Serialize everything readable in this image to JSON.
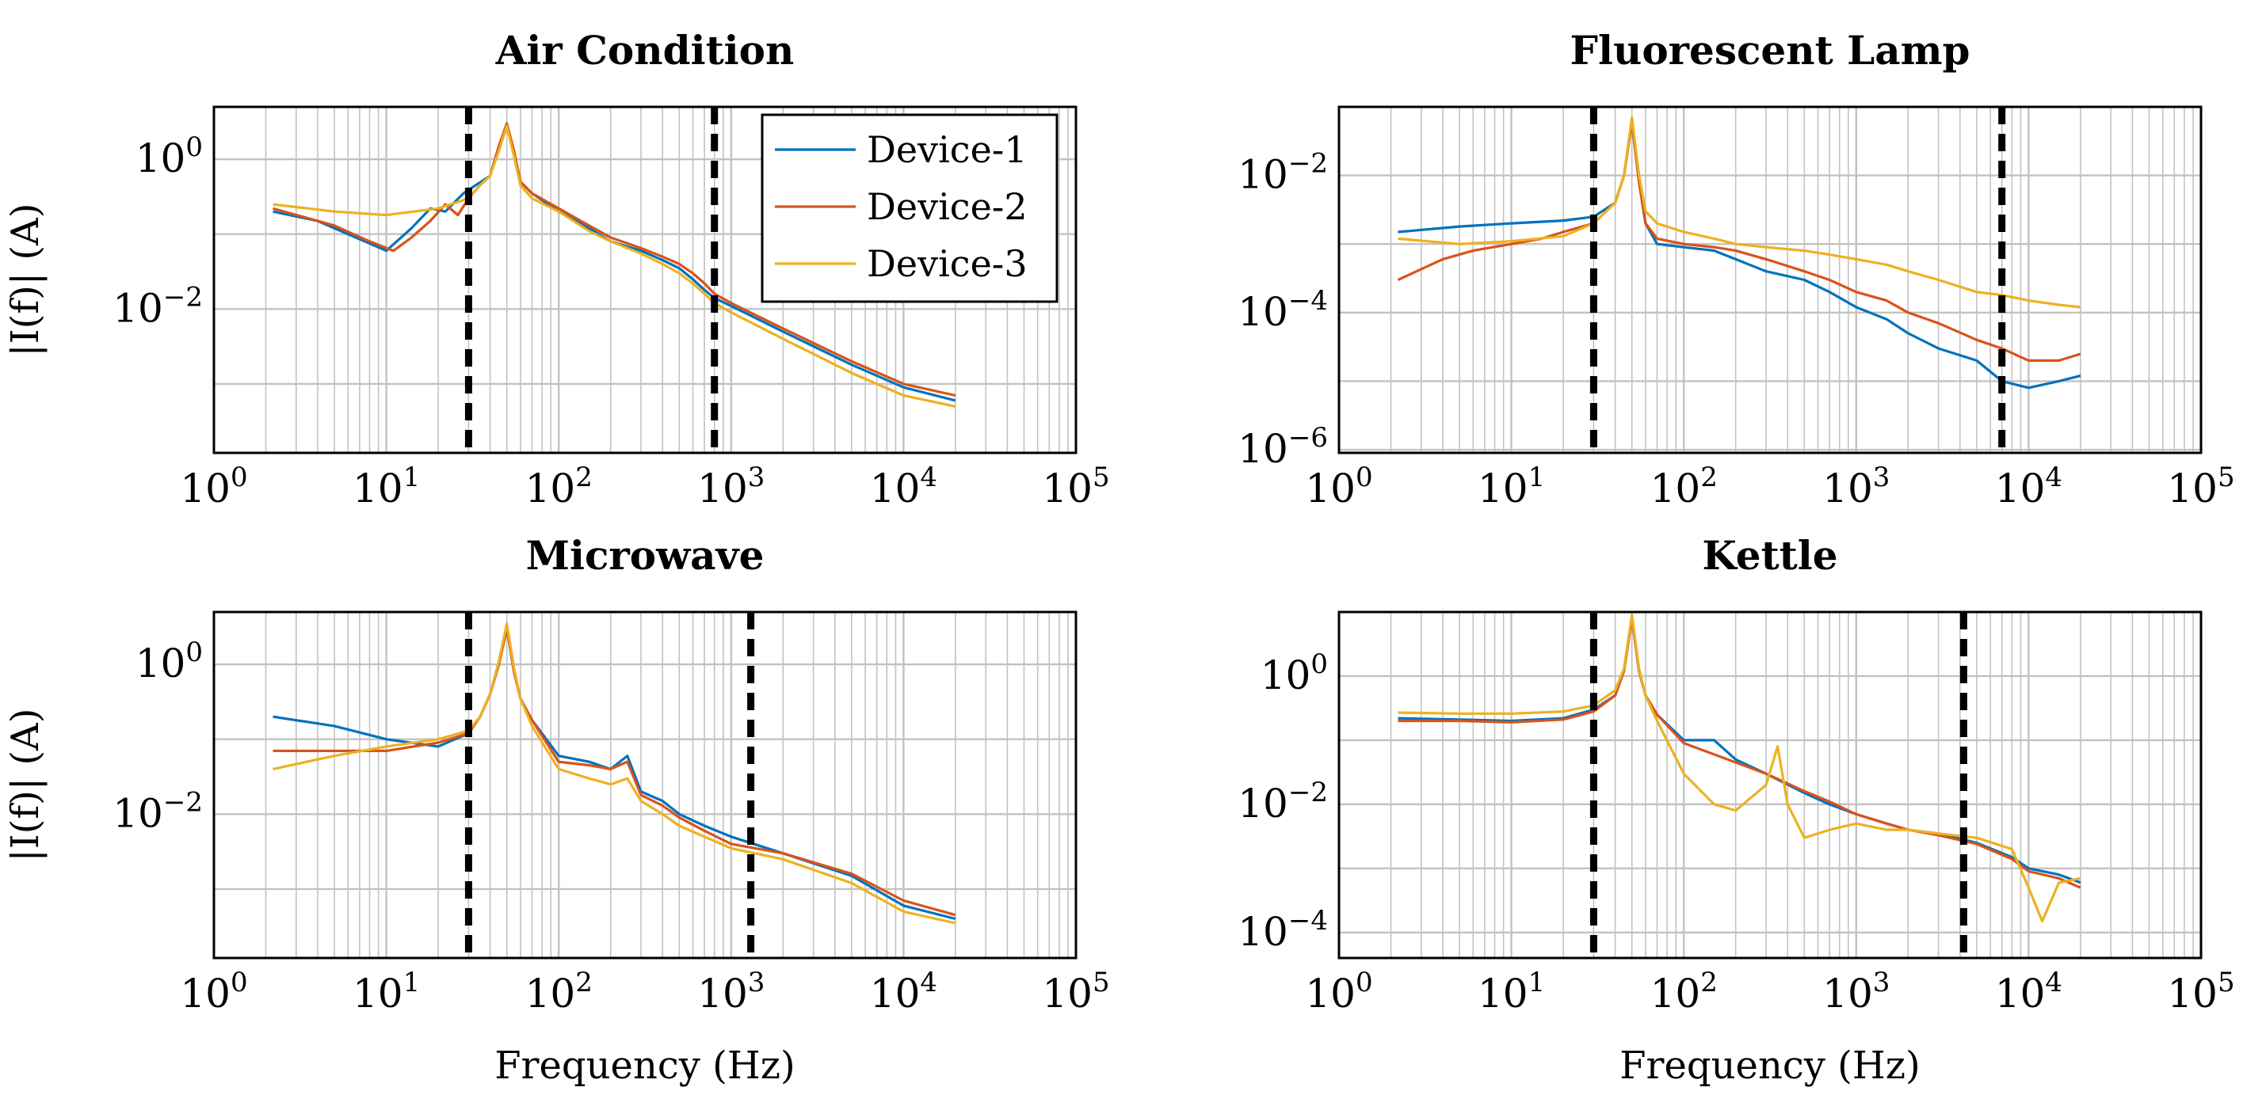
{
  "chart_data": [
    {
      "id": "air-condition",
      "type": "line",
      "title": "Air Condition",
      "ylabel": "|I(f)| (A)",
      "xlabel": "",
      "xscale": "log",
      "yscale": "log",
      "xlim": [
        1,
        100000
      ],
      "ylim": [
        0.00012,
        5
      ],
      "x_ticks": [
        {
          "base": "10",
          "exp": "0",
          "v": 1
        },
        {
          "base": "10",
          "exp": "1",
          "v": 10
        },
        {
          "base": "10",
          "exp": "2",
          "v": 100
        },
        {
          "base": "10",
          "exp": "3",
          "v": 1000
        },
        {
          "base": "10",
          "exp": "4",
          "v": 10000
        },
        {
          "base": "10",
          "exp": "5",
          "v": 100000
        }
      ],
      "y_ticks": [
        {
          "base": "10",
          "exp": "0",
          "v": 1
        },
        {
          "base": "10",
          "exp": "−2",
          "v": 0.01
        }
      ],
      "grid": true,
      "vlines": [
        30,
        800
      ],
      "legend": {
        "location": "top-right",
        "entries": [
          "Device-1",
          "Device-2",
          "Device-3"
        ]
      },
      "series": [
        {
          "name": "Device-1",
          "color": "#0072BD",
          "x": [
            2.2,
            4,
            10,
            14,
            18,
            22,
            28,
            33,
            40,
            45,
            50,
            55,
            60,
            70,
            100,
            150,
            200,
            300,
            400,
            500,
            600,
            700,
            800,
            1000,
            2000,
            5000,
            10000,
            20000
          ],
          "y": [
            0.2,
            0.15,
            0.06,
            0.12,
            0.22,
            0.2,
            0.35,
            0.45,
            0.6,
            1.5,
            3.0,
            1.2,
            0.5,
            0.35,
            0.2,
            0.12,
            0.08,
            0.06,
            0.045,
            0.035,
            0.025,
            0.018,
            0.014,
            0.011,
            0.005,
            0.0018,
            0.0009,
            0.0006
          ]
        },
        {
          "name": "Device-2",
          "color": "#D95319",
          "x": [
            2.2,
            5,
            8,
            11,
            14,
            18,
            22,
            26,
            30,
            35,
            40,
            45,
            50,
            55,
            60,
            70,
            100,
            150,
            200,
            300,
            400,
            500,
            600,
            700,
            800,
            1000,
            2000,
            5000,
            10000,
            20000
          ],
          "y": [
            0.22,
            0.13,
            0.08,
            0.06,
            0.09,
            0.15,
            0.25,
            0.18,
            0.3,
            0.45,
            0.6,
            1.5,
            3.0,
            1.3,
            0.5,
            0.35,
            0.22,
            0.13,
            0.09,
            0.065,
            0.05,
            0.04,
            0.03,
            0.022,
            0.016,
            0.012,
            0.0055,
            0.002,
            0.001,
            0.0007
          ]
        },
        {
          "name": "Device-3",
          "color": "#EDB120",
          "x": [
            2.2,
            5,
            10,
            20,
            30,
            35,
            40,
            45,
            50,
            55,
            60,
            70,
            100,
            150,
            200,
            300,
            400,
            500,
            600,
            700,
            800,
            1000,
            2000,
            5000,
            10000,
            20000
          ],
          "y": [
            0.25,
            0.2,
            0.18,
            0.22,
            0.3,
            0.45,
            0.6,
            1.3,
            2.8,
            1.1,
            0.45,
            0.3,
            0.2,
            0.11,
            0.08,
            0.055,
            0.04,
            0.03,
            0.022,
            0.016,
            0.012,
            0.009,
            0.004,
            0.0014,
            0.0007,
            0.0005
          ]
        }
      ]
    },
    {
      "id": "fluorescent-lamp",
      "type": "line",
      "title": "Fluorescent Lamp",
      "ylabel": "",
      "xlabel": "",
      "xscale": "log",
      "yscale": "log",
      "xlim": [
        1,
        100000
      ],
      "ylim": [
        9e-07,
        0.1
      ],
      "x_ticks": [
        {
          "base": "10",
          "exp": "0",
          "v": 1
        },
        {
          "base": "10",
          "exp": "1",
          "v": 10
        },
        {
          "base": "10",
          "exp": "2",
          "v": 100
        },
        {
          "base": "10",
          "exp": "3",
          "v": 1000
        },
        {
          "base": "10",
          "exp": "4",
          "v": 10000
        },
        {
          "base": "10",
          "exp": "5",
          "v": 100000
        }
      ],
      "y_ticks": [
        {
          "base": "10",
          "exp": "−2",
          "v": 0.01
        },
        {
          "base": "10",
          "exp": "−4",
          "v": 0.0001
        },
        {
          "base": "10",
          "exp": "−6",
          "v": 1e-06
        }
      ],
      "grid": true,
      "vlines": [
        30,
        7000
      ],
      "series": [
        {
          "name": "Device-1",
          "color": "#0072BD",
          "x": [
            2.2,
            5,
            10,
            20,
            30,
            40,
            45,
            50,
            55,
            60,
            70,
            100,
            150,
            200,
            300,
            500,
            700,
            1000,
            1500,
            2000,
            3000,
            5000,
            7000,
            10000,
            15000,
            20000
          ],
          "y": [
            0.0015,
            0.0018,
            0.002,
            0.0022,
            0.0025,
            0.004,
            0.01,
            0.06,
            0.008,
            0.002,
            0.001,
            0.0009,
            0.0008,
            0.0006,
            0.0004,
            0.0003,
            0.0002,
            0.00012,
            8e-05,
            5e-05,
            3e-05,
            2e-05,
            1e-05,
            8e-06,
            1e-05,
            1.2e-05
          ]
        },
        {
          "name": "Device-2",
          "color": "#D95319",
          "x": [
            2.2,
            4,
            6,
            10,
            15,
            20,
            30,
            40,
            45,
            50,
            55,
            60,
            70,
            100,
            150,
            200,
            300,
            500,
            700,
            1000,
            1500,
            2000,
            3000,
            5000,
            7000,
            10000,
            15000,
            20000
          ],
          "y": [
            0.0003,
            0.0006,
            0.0008,
            0.001,
            0.0012,
            0.0015,
            0.002,
            0.004,
            0.01,
            0.06,
            0.008,
            0.002,
            0.0012,
            0.001,
            0.0009,
            0.0008,
            0.0006,
            0.0004,
            0.0003,
            0.0002,
            0.00015,
            0.0001,
            7e-05,
            4e-05,
            3e-05,
            2e-05,
            2e-05,
            2.5e-05
          ]
        },
        {
          "name": "Device-3",
          "color": "#EDB120",
          "x": [
            2.2,
            5,
            10,
            20,
            30,
            40,
            45,
            50,
            55,
            60,
            70,
            100,
            150,
            200,
            300,
            500,
            700,
            1000,
            1500,
            2000,
            3000,
            5000,
            7000,
            10000,
            15000,
            20000
          ],
          "y": [
            0.0012,
            0.001,
            0.0011,
            0.0013,
            0.002,
            0.004,
            0.01,
            0.07,
            0.01,
            0.003,
            0.002,
            0.0015,
            0.0012,
            0.001,
            0.0009,
            0.0008,
            0.0007,
            0.0006,
            0.0005,
            0.0004,
            0.0003,
            0.0002,
            0.00018,
            0.00015,
            0.00013,
            0.00012
          ]
        }
      ]
    },
    {
      "id": "microwave",
      "type": "line",
      "title": "Microwave",
      "ylabel": "|I(f)| (A)",
      "xlabel": "Frequency (Hz)",
      "xscale": "log",
      "yscale": "log",
      "xlim": [
        1,
        100000
      ],
      "ylim": [
        0.00012,
        5
      ],
      "x_ticks": [
        {
          "base": "10",
          "exp": "0",
          "v": 1
        },
        {
          "base": "10",
          "exp": "1",
          "v": 10
        },
        {
          "base": "10",
          "exp": "2",
          "v": 100
        },
        {
          "base": "10",
          "exp": "3",
          "v": 1000
        },
        {
          "base": "10",
          "exp": "4",
          "v": 10000
        },
        {
          "base": "10",
          "exp": "5",
          "v": 100000
        }
      ],
      "y_ticks": [
        {
          "base": "10",
          "exp": "0",
          "v": 1
        },
        {
          "base": "10",
          "exp": "−2",
          "v": 0.01
        }
      ],
      "grid": true,
      "vlines": [
        30,
        1300
      ],
      "series": [
        {
          "name": "Device-1",
          "color": "#0072BD",
          "x": [
            2.2,
            5,
            10,
            20,
            30,
            35,
            40,
            45,
            50,
            55,
            60,
            70,
            100,
            150,
            200,
            250,
            300,
            400,
            500,
            700,
            1000,
            2000,
            5000,
            10000,
            20000
          ],
          "y": [
            0.2,
            0.15,
            0.1,
            0.08,
            0.12,
            0.2,
            0.4,
            1.0,
            3.2,
            0.8,
            0.35,
            0.18,
            0.06,
            0.05,
            0.04,
            0.06,
            0.02,
            0.015,
            0.01,
            0.007,
            0.005,
            0.003,
            0.0015,
            0.0006,
            0.0004
          ]
        },
        {
          "name": "Device-2",
          "color": "#D95319",
          "x": [
            2.2,
            5,
            10,
            20,
            30,
            35,
            40,
            45,
            50,
            55,
            60,
            70,
            100,
            150,
            200,
            250,
            300,
            400,
            500,
            700,
            1000,
            2000,
            5000,
            10000,
            20000
          ],
          "y": [
            0.07,
            0.07,
            0.07,
            0.09,
            0.12,
            0.2,
            0.4,
            1.0,
            3.0,
            0.8,
            0.35,
            0.18,
            0.05,
            0.045,
            0.04,
            0.05,
            0.018,
            0.013,
            0.009,
            0.006,
            0.004,
            0.003,
            0.0016,
            0.0007,
            0.00045
          ]
        },
        {
          "name": "Device-3",
          "color": "#EDB120",
          "x": [
            2.2,
            5,
            10,
            20,
            30,
            35,
            40,
            45,
            50,
            55,
            60,
            70,
            100,
            150,
            200,
            250,
            300,
            400,
            500,
            700,
            1000,
            2000,
            5000,
            10000,
            20000
          ],
          "y": [
            0.04,
            0.06,
            0.08,
            0.1,
            0.13,
            0.2,
            0.4,
            1.1,
            3.5,
            0.9,
            0.35,
            0.15,
            0.04,
            0.03,
            0.025,
            0.03,
            0.015,
            0.01,
            0.007,
            0.005,
            0.0035,
            0.0025,
            0.0012,
            0.0005,
            0.00035
          ]
        }
      ]
    },
    {
      "id": "kettle",
      "type": "line",
      "title": "Kettle",
      "ylabel": "",
      "xlabel": "Frequency (Hz)",
      "xscale": "log",
      "yscale": "log",
      "xlim": [
        1,
        100000
      ],
      "ylim": [
        4e-05,
        10
      ],
      "x_ticks": [
        {
          "base": "10",
          "exp": "0",
          "v": 1
        },
        {
          "base": "10",
          "exp": "1",
          "v": 10
        },
        {
          "base": "10",
          "exp": "2",
          "v": 100
        },
        {
          "base": "10",
          "exp": "3",
          "v": 1000
        },
        {
          "base": "10",
          "exp": "4",
          "v": 10000
        },
        {
          "base": "10",
          "exp": "5",
          "v": 100000
        }
      ],
      "y_ticks": [
        {
          "base": "10",
          "exp": "0",
          "v": 1
        },
        {
          "base": "10",
          "exp": "−2",
          "v": 0.01
        },
        {
          "base": "10",
          "exp": "−4",
          "v": 0.0001
        }
      ],
      "grid": true,
      "vlines": [
        30,
        4200
      ],
      "series": [
        {
          "name": "Device-1",
          "color": "#0072BD",
          "x": [
            2.2,
            5,
            10,
            20,
            30,
            40,
            45,
            50,
            55,
            60,
            70,
            100,
            150,
            200,
            300,
            500,
            700,
            1000,
            1500,
            2000,
            3000,
            5000,
            8000,
            10000,
            15000,
            20000
          ],
          "y": [
            0.22,
            0.21,
            0.2,
            0.22,
            0.3,
            0.5,
            1.2,
            8.0,
            1.2,
            0.5,
            0.25,
            0.1,
            0.1,
            0.05,
            0.03,
            0.015,
            0.01,
            0.007,
            0.005,
            0.004,
            0.0035,
            0.0025,
            0.0015,
            0.001,
            0.0008,
            0.0006
          ]
        },
        {
          "name": "Device-2",
          "color": "#D95319",
          "x": [
            2.2,
            5,
            10,
            20,
            30,
            40,
            45,
            50,
            55,
            60,
            70,
            100,
            150,
            200,
            300,
            500,
            700,
            1000,
            1500,
            2000,
            3000,
            5000,
            8000,
            10000,
            15000,
            20000
          ],
          "y": [
            0.2,
            0.2,
            0.19,
            0.21,
            0.28,
            0.5,
            1.2,
            8.0,
            1.2,
            0.5,
            0.25,
            0.09,
            0.06,
            0.045,
            0.03,
            0.016,
            0.011,
            0.007,
            0.005,
            0.004,
            0.0033,
            0.0024,
            0.0014,
            0.0009,
            0.0007,
            0.0005
          ]
        },
        {
          "name": "Device-3",
          "color": "#EDB120",
          "x": [
            2.2,
            5,
            10,
            20,
            30,
            40,
            45,
            50,
            55,
            60,
            70,
            100,
            150,
            200,
            300,
            350,
            400,
            500,
            700,
            1000,
            1500,
            2000,
            3000,
            5000,
            8000,
            10000,
            12000,
            15000,
            20000
          ],
          "y": [
            0.27,
            0.26,
            0.26,
            0.28,
            0.35,
            0.6,
            1.3,
            9.0,
            1.3,
            0.5,
            0.2,
            0.03,
            0.01,
            0.008,
            0.02,
            0.08,
            0.01,
            0.003,
            0.004,
            0.005,
            0.004,
            0.004,
            0.0035,
            0.003,
            0.002,
            0.0005,
            0.00015,
            0.0006,
            0.0007
          ]
        }
      ]
    }
  ]
}
